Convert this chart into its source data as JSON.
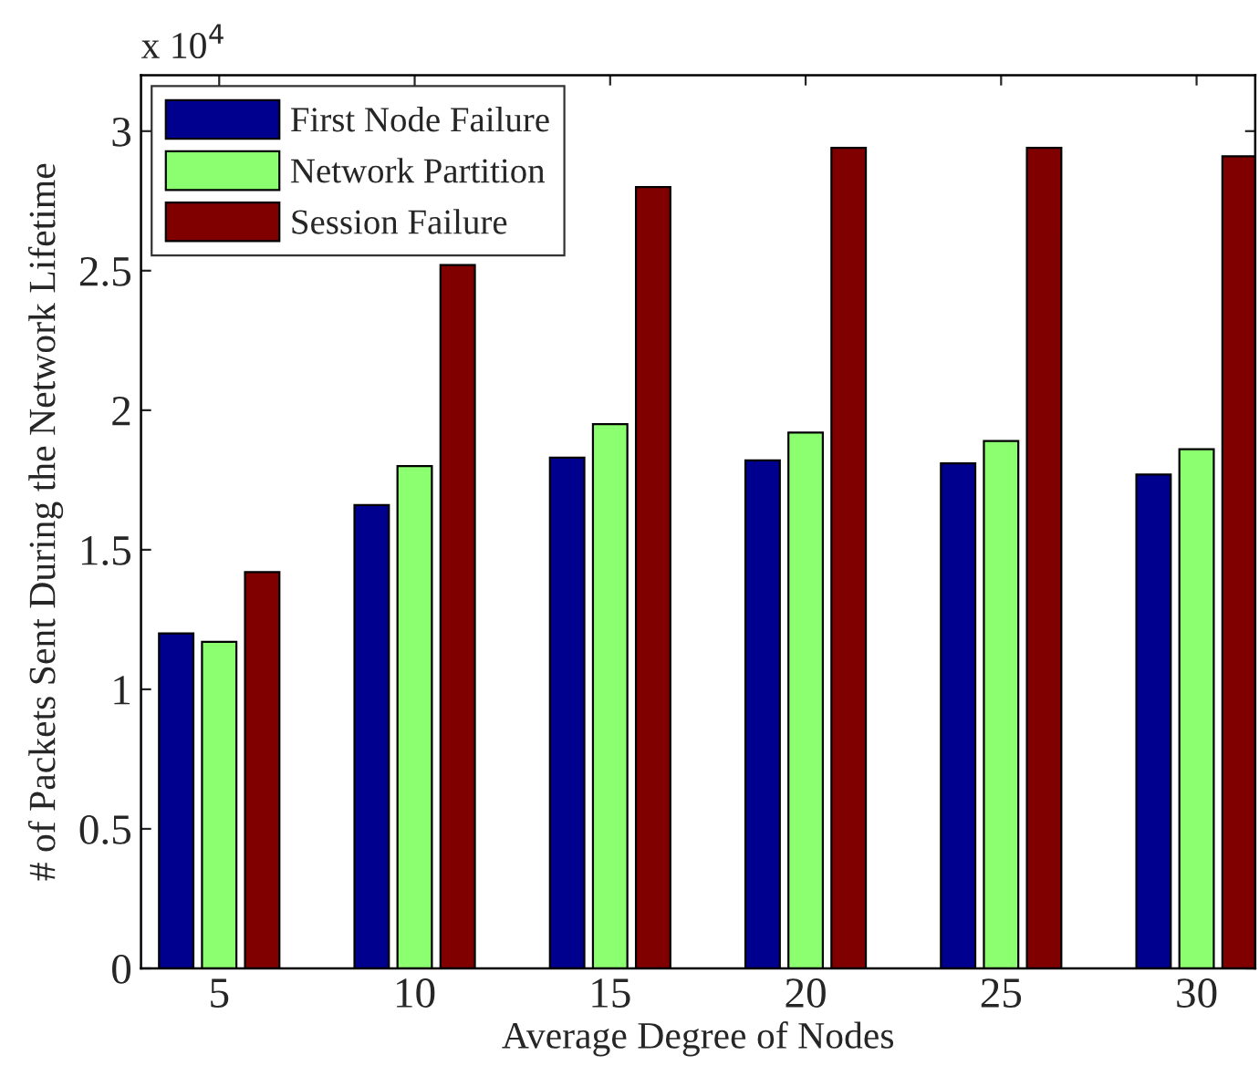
{
  "chart_data": {
    "type": "bar",
    "xlabel": "Average Degree of Nodes",
    "ylabel": "# of Packets Sent During the Network Lifetime",
    "annotations": [
      "x 10$^{4}$"
    ],
    "x": [
      5,
      10,
      15,
      20,
      25,
      30
    ],
    "xlim": [
      3,
      31.5
    ],
    "xticks": [
      5,
      10,
      15,
      20,
      25,
      30
    ],
    "ylim": [
      0,
      3.2
    ],
    "yticks": [
      0,
      0.5,
      1,
      1.5,
      2,
      2.5,
      3
    ],
    "series": [
      {
        "name": "First Node Failure",
        "color": "#00008f",
        "values": [
          1.2,
          1.66,
          1.83,
          1.82,
          1.81,
          1.77
        ]
      },
      {
        "name": "Network Partition",
        "color": "#8cff70",
        "values": [
          1.17,
          1.8,
          1.95,
          1.92,
          1.89,
          1.86
        ]
      },
      {
        "name": "Session Failure",
        "color": "#800000",
        "values": [
          1.42,
          2.52,
          2.8,
          2.94,
          2.94,
          2.91
        ]
      }
    ],
    "legend": "top left",
    "grid": false
  }
}
